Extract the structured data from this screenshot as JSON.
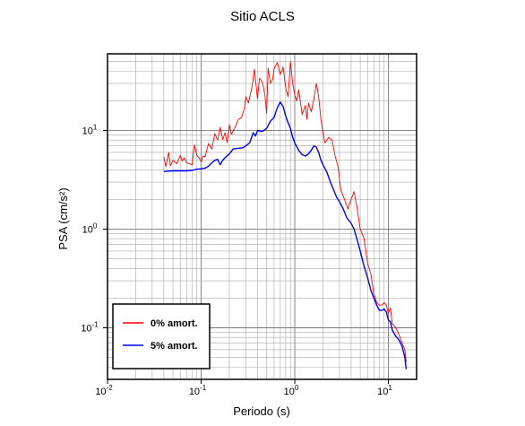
{
  "chart_data": {
    "type": "line",
    "title": "Sitio ACLS",
    "xlabel": "Periodo (s)",
    "ylabel": "PSA (cm/s²)",
    "x_scale": "log",
    "y_scale": "log",
    "xlim": [
      0.01,
      20
    ],
    "ylim": [
      0.03,
      60
    ],
    "grid": true,
    "legend_position": "bottom-left",
    "x_ticks": [
      {
        "value": 0.01,
        "base": "10",
        "exp": "-2"
      },
      {
        "value": 0.1,
        "base": "10",
        "exp": "-1"
      },
      {
        "value": 1,
        "base": "10",
        "exp": "0"
      },
      {
        "value": 10,
        "base": "10",
        "exp": "1"
      }
    ],
    "y_ticks": [
      {
        "value": 0.1,
        "base": "10",
        "exp": "-1"
      },
      {
        "value": 1,
        "base": "10",
        "exp": "0"
      },
      {
        "value": 10,
        "base": "10",
        "exp": "1"
      }
    ],
    "series": [
      {
        "name": "0% amort.",
        "color": "#ff0000",
        "points": [
          [
            0.04,
            5.4
          ],
          [
            0.042,
            4.3
          ],
          [
            0.045,
            6.0
          ],
          [
            0.047,
            4.4
          ],
          [
            0.05,
            5.0
          ],
          [
            0.055,
            4.6
          ],
          [
            0.06,
            5.6
          ],
          [
            0.063,
            4.9
          ],
          [
            0.066,
            5.3
          ],
          [
            0.07,
            4.7
          ],
          [
            0.075,
            4.6
          ],
          [
            0.08,
            4.5
          ],
          [
            0.085,
            7.2
          ],
          [
            0.09,
            5.6
          ],
          [
            0.095,
            5.3
          ],
          [
            0.1,
            4.8
          ],
          [
            0.105,
            5.5
          ],
          [
            0.11,
            5.4
          ],
          [
            0.12,
            7.4
          ],
          [
            0.13,
            6.5
          ],
          [
            0.14,
            9.3
          ],
          [
            0.15,
            8.0
          ],
          [
            0.16,
            10.8
          ],
          [
            0.17,
            8.1
          ],
          [
            0.18,
            9.5
          ],
          [
            0.19,
            7.5
          ],
          [
            0.2,
            11.5
          ],
          [
            0.21,
            9.2
          ],
          [
            0.23,
            10.7
          ],
          [
            0.25,
            13.0
          ],
          [
            0.27,
            13.5
          ],
          [
            0.29,
            17.0
          ],
          [
            0.3,
            22.0
          ],
          [
            0.32,
            19.0
          ],
          [
            0.35,
            28.0
          ],
          [
            0.37,
            42.0
          ],
          [
            0.4,
            21.0
          ],
          [
            0.42,
            34.0
          ],
          [
            0.45,
            31.0
          ],
          [
            0.48,
            23.0
          ],
          [
            0.5,
            15.0
          ],
          [
            0.52,
            43.0
          ],
          [
            0.55,
            30.0
          ],
          [
            0.58,
            33.0
          ],
          [
            0.6,
            42.0
          ],
          [
            0.65,
            49.0
          ],
          [
            0.7,
            37.0
          ],
          [
            0.75,
            44.0
          ],
          [
            0.8,
            27.0
          ],
          [
            0.85,
            22.0
          ],
          [
            0.9,
            50.0
          ],
          [
            0.95,
            30.0
          ],
          [
            1.0,
            23.0
          ],
          [
            1.05,
            20.0
          ],
          [
            1.1,
            26.0
          ],
          [
            1.2,
            14.5
          ],
          [
            1.3,
            18.0
          ],
          [
            1.35,
            13.0
          ],
          [
            1.4,
            19.0
          ],
          [
            1.5,
            15.5
          ],
          [
            1.6,
            21.0
          ],
          [
            1.7,
            30.0
          ],
          [
            1.8,
            22.0
          ],
          [
            1.9,
            13.0
          ],
          [
            2.0,
            9.5
          ],
          [
            2.1,
            7.5
          ],
          [
            2.3,
            8.5
          ],
          [
            2.5,
            8.0
          ],
          [
            2.7,
            5.5
          ],
          [
            2.9,
            4.3
          ],
          [
            3.1,
            2.5
          ],
          [
            3.4,
            2.0
          ],
          [
            3.7,
            1.6
          ],
          [
            4.0,
            2.0
          ],
          [
            4.3,
            2.4
          ],
          [
            4.6,
            1.7
          ],
          [
            5.0,
            1.0
          ],
          [
            5.5,
            0.8
          ],
          [
            6.0,
            0.45
          ],
          [
            6.5,
            0.35
          ],
          [
            7.0,
            0.22
          ],
          [
            7.5,
            0.18
          ],
          [
            8.0,
            0.17
          ],
          [
            8.5,
            0.17
          ],
          [
            9.0,
            0.18
          ],
          [
            9.5,
            0.17
          ],
          [
            10.0,
            0.14
          ],
          [
            10.5,
            0.16
          ],
          [
            11.0,
            0.11
          ],
          [
            12.0,
            0.1
          ],
          [
            13.0,
            0.085
          ],
          [
            14.0,
            0.07
          ],
          [
            15.0,
            0.06
          ],
          [
            15.5,
            0.045
          ]
        ]
      },
      {
        "name": "5% amort.",
        "color": "#0000ff",
        "points": [
          [
            0.04,
            3.85
          ],
          [
            0.05,
            3.9
          ],
          [
            0.06,
            3.9
          ],
          [
            0.07,
            3.9
          ],
          [
            0.08,
            3.95
          ],
          [
            0.09,
            4.05
          ],
          [
            0.1,
            4.1
          ],
          [
            0.11,
            4.15
          ],
          [
            0.12,
            4.35
          ],
          [
            0.13,
            4.7
          ],
          [
            0.14,
            5.0
          ],
          [
            0.15,
            5.1
          ],
          [
            0.16,
            4.5
          ],
          [
            0.17,
            5.0
          ],
          [
            0.18,
            5.3
          ],
          [
            0.2,
            5.8
          ],
          [
            0.22,
            6.5
          ],
          [
            0.25,
            6.6
          ],
          [
            0.28,
            6.7
          ],
          [
            0.3,
            7.0
          ],
          [
            0.33,
            7.5
          ],
          [
            0.36,
            9.5
          ],
          [
            0.38,
            8.8
          ],
          [
            0.4,
            10.0
          ],
          [
            0.45,
            9.8
          ],
          [
            0.5,
            10.5
          ],
          [
            0.55,
            12.5
          ],
          [
            0.6,
            13.5
          ],
          [
            0.65,
            17.0
          ],
          [
            0.7,
            19.5
          ],
          [
            0.75,
            17.5
          ],
          [
            0.8,
            14.0
          ],
          [
            0.85,
            12.0
          ],
          [
            0.9,
            10.5
          ],
          [
            0.95,
            8.5
          ],
          [
            1.0,
            7.5
          ],
          [
            1.1,
            6.3
          ],
          [
            1.2,
            5.7
          ],
          [
            1.3,
            5.5
          ],
          [
            1.4,
            5.8
          ],
          [
            1.5,
            6.3
          ],
          [
            1.6,
            7.0
          ],
          [
            1.7,
            6.8
          ],
          [
            1.8,
            6.0
          ],
          [
            1.9,
            5.0
          ],
          [
            2.0,
            4.5
          ],
          [
            2.2,
            3.8
          ],
          [
            2.4,
            3.0
          ],
          [
            2.6,
            2.5
          ],
          [
            2.8,
            2.1
          ],
          [
            3.0,
            1.9
          ],
          [
            3.3,
            1.6
          ],
          [
            3.6,
            1.3
          ],
          [
            4.0,
            1.15
          ],
          [
            4.3,
            1.0
          ],
          [
            4.6,
            0.8
          ],
          [
            5.0,
            0.6
          ],
          [
            5.5,
            0.42
          ],
          [
            6.0,
            0.32
          ],
          [
            6.5,
            0.24
          ],
          [
            7.0,
            0.2
          ],
          [
            7.5,
            0.17
          ],
          [
            8.0,
            0.15
          ],
          [
            8.5,
            0.15
          ],
          [
            9.0,
            0.155
          ],
          [
            9.5,
            0.145
          ],
          [
            10.0,
            0.12
          ],
          [
            10.5,
            0.115
          ],
          [
            11.0,
            0.095
          ],
          [
            12.0,
            0.082
          ],
          [
            13.0,
            0.075
          ],
          [
            14.0,
            0.065
          ],
          [
            15.0,
            0.05
          ],
          [
            15.5,
            0.038
          ]
        ]
      }
    ]
  }
}
